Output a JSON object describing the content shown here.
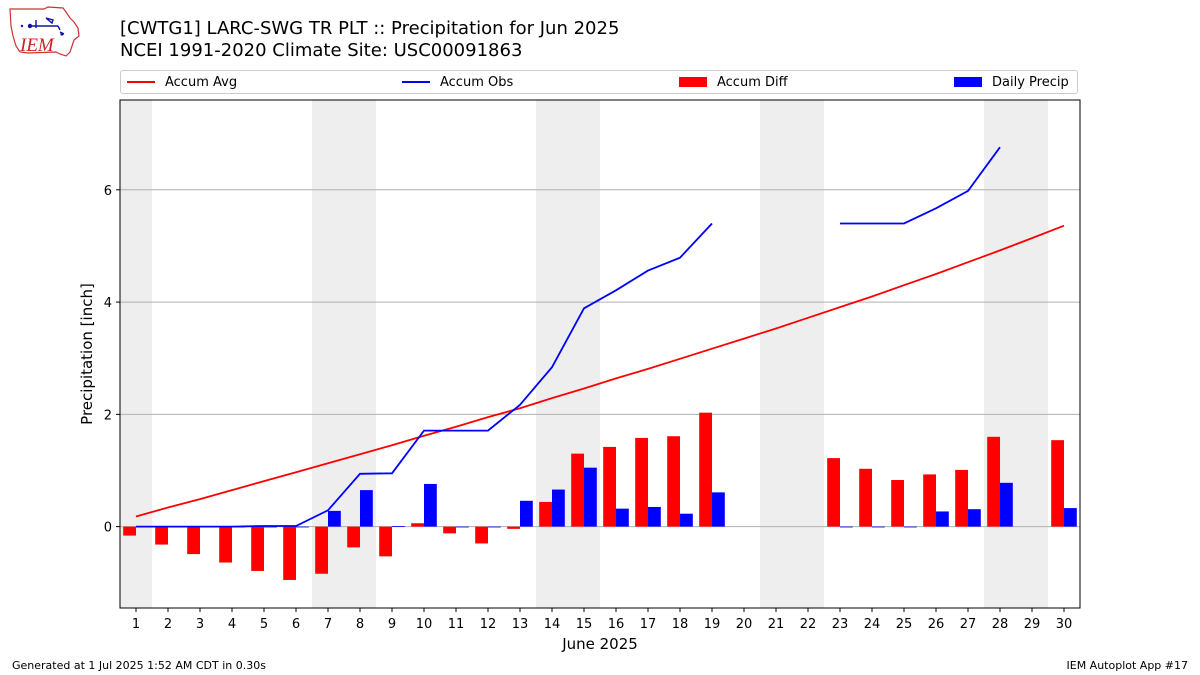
{
  "chart_data": {
    "type": "bar",
    "title": "[CWTG1] LARC-SWG TR PLT :: Precipitation for Jun 2025",
    "subtitle": "NCEI 1991-2020 Climate Site: USC00091863",
    "xlabel": "June 2025",
    "ylabel": "Precipitation [inch]",
    "ylim": [
      -1.45,
      7.6
    ],
    "yticks": [
      0,
      2,
      4,
      6
    ],
    "grid": "y",
    "legend_position": "top",
    "days": [
      1,
      2,
      3,
      4,
      5,
      6,
      7,
      8,
      9,
      10,
      11,
      12,
      13,
      14,
      15,
      16,
      17,
      18,
      19,
      20,
      21,
      22,
      23,
      24,
      25,
      26,
      27,
      28,
      29,
      30
    ],
    "weekend_days": [
      1,
      7,
      8,
      14,
      15,
      21,
      22,
      28,
      29
    ],
    "series": [
      {
        "name": "Accum Avg",
        "kind": "line",
        "color": "#ff0000",
        "values": [
          0.18,
          0.34,
          0.49,
          0.65,
          0.81,
          0.97,
          1.13,
          1.29,
          1.45,
          1.62,
          1.78,
          1.95,
          2.11,
          2.29,
          2.46,
          2.64,
          2.81,
          2.99,
          3.17,
          3.35,
          3.53,
          3.72,
          3.91,
          4.1,
          4.3,
          4.5,
          4.71,
          4.92,
          5.14,
          5.36
        ]
      },
      {
        "name": "Accum Obs",
        "kind": "line",
        "color": "#0000ff",
        "values": [
          0.0,
          0.0,
          0.0,
          0.0,
          0.01,
          0.01,
          0.29,
          0.94,
          0.95,
          1.71,
          1.71,
          1.71,
          2.17,
          2.84,
          3.89,
          4.21,
          4.56,
          4.79,
          5.4,
          null,
          null,
          null,
          5.4,
          5.4,
          5.4,
          5.67,
          5.98,
          6.76,
          null,
          null
        ]
      },
      {
        "name": "Accum Diff",
        "kind": "bar",
        "color": "#ff0000",
        "values": [
          -0.16,
          -0.32,
          -0.49,
          -0.64,
          -0.79,
          -0.95,
          -0.84,
          -0.37,
          -0.53,
          0.06,
          -0.12,
          -0.3,
          -0.04,
          0.44,
          1.3,
          1.42,
          1.58,
          1.61,
          2.03,
          null,
          null,
          null,
          1.22,
          1.03,
          0.83,
          0.93,
          1.01,
          1.6,
          null,
          1.54
        ]
      },
      {
        "name": "Daily Precip",
        "kind": "bar",
        "color": "#0000ff",
        "values": [
          0,
          0,
          0,
          0,
          0,
          0,
          0.28,
          0.65,
          0.01,
          0.76,
          0,
          0,
          0.46,
          0.66,
          1.05,
          0.32,
          0.35,
          0.23,
          0.61,
          null,
          null,
          null,
          0,
          0,
          0,
          0.27,
          0.31,
          0.78,
          null,
          0.33
        ]
      }
    ]
  },
  "logo": {
    "text": "IEM"
  },
  "footer": {
    "generated": "Generated at 1 Jul 2025 1:52 AM CDT in 0.30s",
    "app": "IEM Autoplot App #17"
  }
}
